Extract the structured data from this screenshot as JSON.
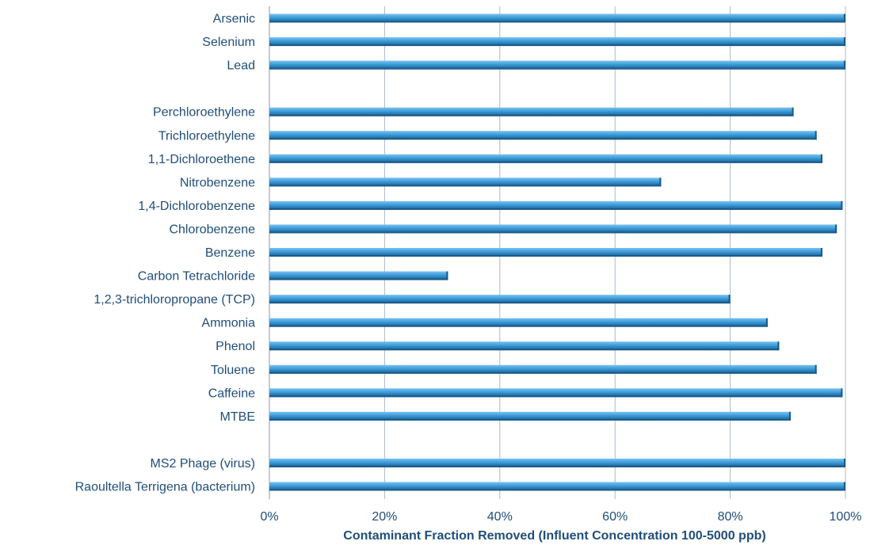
{
  "chart_data": {
    "type": "bar",
    "orientation": "horizontal",
    "categories": [
      "Arsenic",
      "Selenium",
      "Lead",
      "",
      "Perchloroethylene",
      "Trichloroethylene",
      "1,1-Dichloroethene",
      "Nitrobenzene",
      "1,4-Dichlorobenzene",
      "Chlorobenzene",
      "Benzene",
      "Carbon Tetrachloride",
      "1,2,3-trichloropropane (TCP)",
      "Ammonia",
      "Phenol",
      "Toluene",
      "Caffeine",
      "MTBE",
      "",
      "MS2 Phage (virus)",
      "Raoultella Terrigena (bacterium)"
    ],
    "values": [
      100,
      100,
      100,
      null,
      91,
      95,
      96,
      68,
      99.5,
      98.5,
      96,
      31,
      80,
      86.5,
      88.5,
      95,
      99.5,
      90.5,
      null,
      100,
      100
    ],
    "xlim": [
      0,
      100
    ],
    "xticks": [
      0,
      20,
      40,
      60,
      80,
      100
    ],
    "xtick_labels": [
      "0%",
      "20%",
      "40%",
      "60%",
      "80%",
      "100%"
    ],
    "xlabel": "Contaminant Fraction Removed (Influent Concentration 100-5000 ppb)",
    "ylabel": "",
    "title": "",
    "grid": "vertical",
    "legend": "none",
    "colors": {
      "bar": "#3a9ad9",
      "bar_light": "#7cc3ee",
      "bar_dark": "#1b5a8a",
      "text": "#1f4e79",
      "grid": "#a9b9cc",
      "axis": "#8496ad"
    }
  }
}
